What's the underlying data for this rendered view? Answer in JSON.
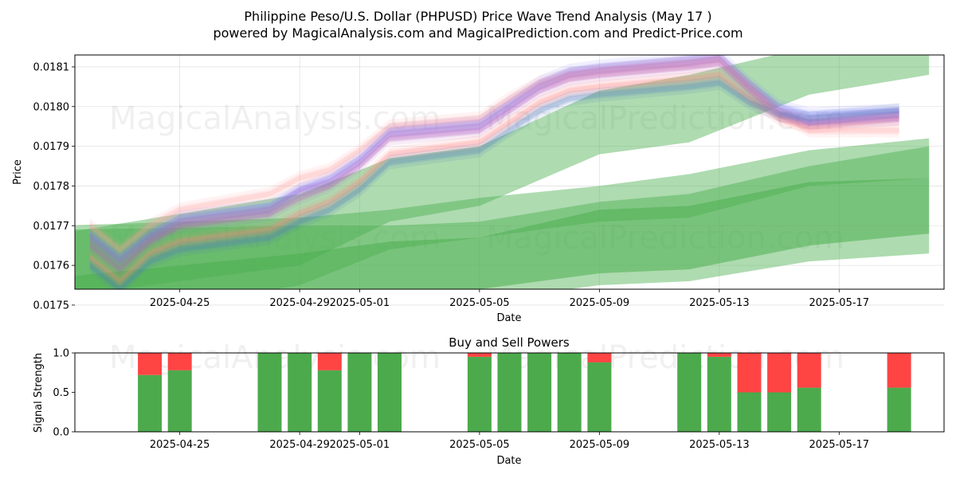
{
  "header": {
    "title": "Philippine Peso/U.S. Dollar (PHPUSD) Price Wave Trend Analysis (May 17 )",
    "subtitle": "powered by MagicalAnalysis.com and MagicalPrediction.com and Predict-Price.com"
  },
  "watermarks": [
    "MagicalAnalysis.com",
    "MagicalPrediction.com"
  ],
  "colors": {
    "forecast_green": "#4caf50",
    "buy_green": "#4caa4c",
    "sell_red": "#ff4444",
    "wave_colors": [
      "#ff8080",
      "#8080ff",
      "#c060c0",
      "#ff9f9f",
      "#9f6fd0",
      "#4f7fbf",
      "#e0a060"
    ]
  },
  "chart_data": [
    {
      "type": "area",
      "title": "",
      "xlabel": "Date",
      "ylabel": "Price",
      "xlim": [
        "2025-04-21T12:00",
        "2025-05-20T12:00"
      ],
      "ylim": [
        0.01754,
        0.01813
      ],
      "grid": true,
      "x_ticks": [
        "2025-04-25",
        "2025-04-29",
        "2025-05-01",
        "2025-05-05",
        "2025-05-09",
        "2025-05-13",
        "2025-05-17"
      ],
      "y_ticks": [
        0.0175,
        0.0176,
        0.0177,
        0.0178,
        0.0179,
        0.018,
        0.0181
      ],
      "y_tick_labels": [
        "0.0175",
        "0.0176",
        "0.0177",
        "0.0178",
        "0.0179",
        "0.0180",
        "0.0181"
      ],
      "price_dates": [
        "2025-04-22",
        "2025-04-23",
        "2025-04-24",
        "2025-04-25",
        "2025-04-28",
        "2025-04-29",
        "2025-04-30",
        "2025-05-01",
        "2025-05-02",
        "2025-05-05",
        "2025-05-06",
        "2025-05-07",
        "2025-05-08",
        "2025-05-09",
        "2025-05-12",
        "2025-05-13",
        "2025-05-14",
        "2025-05-15",
        "2025-05-16",
        "2025-05-19"
      ],
      "price_waves": [
        [
          0.01762,
          0.01756,
          0.01763,
          0.01766,
          0.01769,
          0.01773,
          0.01776,
          0.01781,
          0.01788,
          0.01791,
          0.01796,
          0.01801,
          0.01804,
          0.01805,
          0.01807,
          0.01808,
          0.01802,
          0.01797,
          0.01795,
          0.01797
        ],
        [
          0.01768,
          0.01762,
          0.01768,
          0.01772,
          0.01775,
          0.01779,
          0.01782,
          0.01787,
          0.01794,
          0.01796,
          0.01801,
          0.01806,
          0.01809,
          0.0181,
          0.01812,
          0.01813,
          0.01806,
          0.018,
          0.01798,
          0.01799
        ],
        [
          0.01765,
          0.01759,
          0.01766,
          0.0177,
          0.01773,
          0.01777,
          0.0178,
          0.01785,
          0.01792,
          0.01794,
          0.01799,
          0.01804,
          0.01807,
          0.01808,
          0.0181,
          0.01811,
          0.01804,
          0.01798,
          0.01796,
          0.01798
        ],
        [
          0.0177,
          0.01764,
          0.0177,
          0.01774,
          0.01778,
          0.01782,
          0.01784,
          0.01789,
          0.01795,
          0.01797,
          0.01802,
          0.01806,
          0.01808,
          0.01809,
          0.01811,
          0.01812,
          0.01805,
          0.01798,
          0.01794,
          0.01794
        ],
        [
          0.01767,
          0.01761,
          0.01767,
          0.01771,
          0.01774,
          0.01779,
          0.01781,
          0.01786,
          0.01793,
          0.01795,
          0.018,
          0.01805,
          0.01808,
          0.01809,
          0.01811,
          0.01812,
          0.01805,
          0.01799,
          0.01796,
          0.01797
        ],
        [
          0.0176,
          0.01754,
          0.01761,
          0.01764,
          0.01767,
          0.01771,
          0.01774,
          0.01779,
          0.01786,
          0.01789,
          0.01794,
          0.01799,
          0.01802,
          0.01803,
          0.01805,
          0.01806,
          0.01801,
          0.01798,
          0.01797,
          0.01799
        ]
      ],
      "forecast_dates": [
        "2025-04-21",
        "2025-04-29",
        "2025-05-02",
        "2025-05-05",
        "2025-05-09",
        "2025-05-12",
        "2025-05-16",
        "2025-05-20"
      ],
      "forecast_bands": [
        {
          "lower": [
            0.01752,
            0.0176,
            0.01771,
            0.01775,
            0.01788,
            0.01791,
            0.01803,
            0.01808
          ],
          "upper": [
            0.01768,
            0.01778,
            0.01787,
            0.0179,
            0.01804,
            0.01808,
            0.01815,
            0.01818
          ]
        },
        {
          "lower": [
            0.01745,
            0.01755,
            0.01764,
            0.01767,
            0.01771,
            0.01772,
            0.0178,
            0.01782
          ],
          "upper": [
            0.0177,
            0.01772,
            0.01774,
            0.01777,
            0.0178,
            0.01783,
            0.01789,
            0.01792
          ]
        },
        {
          "lower": [
            0.01753,
            0.01753,
            0.01754,
            0.01754,
            0.01758,
            0.01759,
            0.01765,
            0.01768
          ],
          "upper": [
            0.01757,
            0.01763,
            0.01766,
            0.01767,
            0.01774,
            0.01775,
            0.01781,
            0.01782
          ]
        },
        {
          "lower": [
            0.0174,
            0.01746,
            0.0175,
            0.01751,
            0.01755,
            0.01756,
            0.01761,
            0.01763
          ],
          "upper": [
            0.01769,
            0.0177,
            0.0177,
            0.01771,
            0.01776,
            0.01778,
            0.01785,
            0.0179
          ]
        }
      ]
    },
    {
      "type": "bar",
      "title": "Buy and Sell Powers",
      "xlabel": "Date",
      "ylabel": "Signal Strength",
      "ylim": [
        0,
        1
      ],
      "y_ticks": [
        0.0,
        0.5,
        1.0
      ],
      "y_tick_labels": [
        "0.0",
        "0.5",
        "1.0"
      ],
      "x_ticks": [
        "2025-04-25",
        "2025-04-29",
        "2025-05-01",
        "2025-05-05",
        "2025-05-09",
        "2025-05-13",
        "2025-05-17"
      ],
      "categories": [
        "2025-04-24",
        "2025-04-25",
        "2025-04-28",
        "2025-04-29",
        "2025-04-30",
        "2025-05-01",
        "2025-05-02",
        "2025-05-05",
        "2025-05-06",
        "2025-05-07",
        "2025-05-08",
        "2025-05-09",
        "2025-05-12",
        "2025-05-13",
        "2025-05-14",
        "2025-05-15",
        "2025-05-16",
        "2025-05-19"
      ],
      "series": [
        {
          "values": [
            0.72,
            0.78,
            1.0,
            1.0,
            0.78,
            1.0,
            1.0,
            0.95,
            1.0,
            1.0,
            1.0,
            0.88,
            1.0,
            0.95,
            0.5,
            0.5,
            0.56,
            0.56
          ]
        },
        {
          "values": [
            0.28,
            0.22,
            0.0,
            0.0,
            0.22,
            0.0,
            0.0,
            0.05,
            0.0,
            0.0,
            0.0,
            0.12,
            0.0,
            0.05,
            0.5,
            0.5,
            0.44,
            0.44
          ]
        }
      ]
    }
  ]
}
